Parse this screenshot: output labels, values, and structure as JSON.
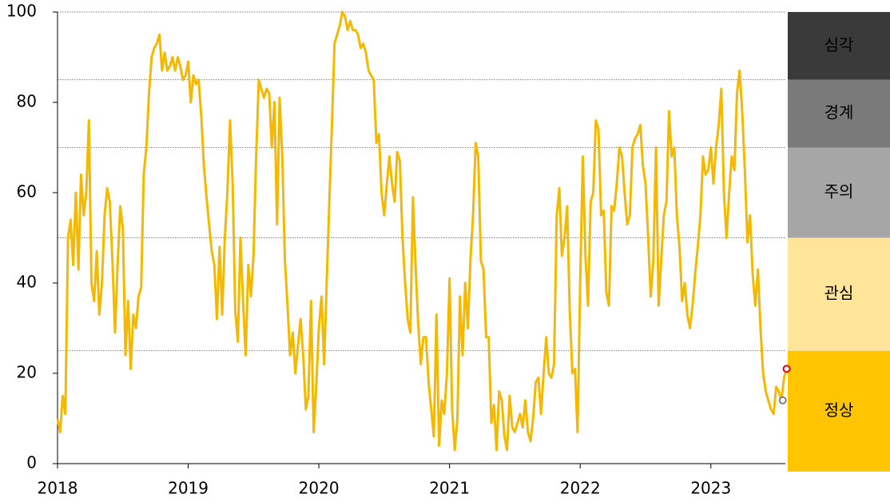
{
  "chart_data": {
    "type": "line",
    "color": "#f5b800",
    "xlim": [
      2018,
      2023.57
    ],
    "xticks": [
      2018,
      2019,
      2020,
      2021,
      2022,
      2023
    ],
    "ylim": [
      0,
      100
    ],
    "yticks": [
      0,
      20,
      40,
      60,
      80,
      100
    ],
    "bands": [
      {
        "label": "정상",
        "from": 0,
        "to": 25,
        "color": "#ffc600"
      },
      {
        "label": "관심",
        "from": 25,
        "to": 50,
        "color": "#ffe599"
      },
      {
        "label": "주의",
        "from": 50,
        "to": 70,
        "color": "#a6a6a6"
      },
      {
        "label": "경계",
        "from": 70,
        "to": 85,
        "color": "#7a7a7a"
      },
      {
        "label": "심각",
        "from": 85,
        "to": 100,
        "color": "#3a3a3a"
      }
    ],
    "markers": [
      {
        "x": 2023.55,
        "y": 14,
        "color": "#7f7f7f"
      },
      {
        "x": 2023.58,
        "y": 21,
        "color": "#e00000"
      }
    ],
    "x": [
      2018,
      2018.02,
      2018.04,
      2018.06,
      2018.08,
      2018.1,
      2018.12,
      2018.14,
      2018.16,
      2018.18,
      2018.2,
      2018.22,
      2018.24,
      2018.26,
      2018.28,
      2018.3,
      2018.32,
      2018.34,
      2018.36,
      2018.38,
      2018.4,
      2018.42,
      2018.44,
      2018.46,
      2018.48,
      2018.5,
      2018.52,
      2018.54,
      2018.56,
      2018.58,
      2018.6,
      2018.62,
      2018.64,
      2018.66,
      2018.68,
      2018.7,
      2018.72,
      2018.74,
      2018.76,
      2018.78,
      2018.8,
      2018.82,
      2018.84,
      2018.86,
      2018.88,
      2018.9,
      2018.92,
      2018.94,
      2018.96,
      2018.98,
      2019,
      2019.02,
      2019.04,
      2019.06,
      2019.08,
      2019.1,
      2019.12,
      2019.14,
      2019.16,
      2019.18,
      2019.2,
      2019.22,
      2019.24,
      2019.26,
      2019.28,
      2019.3,
      2019.32,
      2019.34,
      2019.36,
      2019.38,
      2019.4,
      2019.42,
      2019.44,
      2019.46,
      2019.48,
      2019.5,
      2019.52,
      2019.54,
      2019.56,
      2019.58,
      2019.6,
      2019.62,
      2019.64,
      2019.66,
      2019.68,
      2019.7,
      2019.72,
      2019.74,
      2019.76,
      2019.78,
      2019.8,
      2019.82,
      2019.84,
      2019.86,
      2019.88,
      2019.9,
      2019.92,
      2019.94,
      2019.96,
      2019.98,
      2020,
      2020.02,
      2020.04,
      2020.06,
      2020.08,
      2020.1,
      2020.12,
      2020.14,
      2020.16,
      2020.18,
      2020.2,
      2020.22,
      2020.24,
      2020.26,
      2020.28,
      2020.3,
      2020.32,
      2020.34,
      2020.36,
      2020.38,
      2020.4,
      2020.42,
      2020.44,
      2020.46,
      2020.48,
      2020.5,
      2020.52,
      2020.54,
      2020.56,
      2020.58,
      2020.6,
      2020.62,
      2020.64,
      2020.66,
      2020.68,
      2020.7,
      2020.72,
      2020.74,
      2020.76,
      2020.78,
      2020.8,
      2020.82,
      2020.84,
      2020.86,
      2020.88,
      2020.9,
      2020.92,
      2020.94,
      2020.96,
      2020.98,
      2021,
      2021.02,
      2021.04,
      2021.06,
      2021.08,
      2021.1,
      2021.12,
      2021.14,
      2021.16,
      2021.18,
      2021.2,
      2021.22,
      2021.24,
      2021.26,
      2021.28,
      2021.3,
      2021.32,
      2021.34,
      2021.36,
      2021.38,
      2021.4,
      2021.42,
      2021.44,
      2021.46,
      2021.48,
      2021.5,
      2021.52,
      2021.54,
      2021.56,
      2021.58,
      2021.6,
      2021.62,
      2021.64,
      2021.66,
      2021.68,
      2021.7,
      2021.72,
      2021.74,
      2021.76,
      2021.78,
      2021.8,
      2021.82,
      2021.84,
      2021.86,
      2021.88,
      2021.9,
      2021.92,
      2021.94,
      2021.96,
      2021.98,
      2022,
      2022.02,
      2022.04,
      2022.06,
      2022.08,
      2022.1,
      2022.12,
      2022.14,
      2022.16,
      2022.18,
      2022.2,
      2022.22,
      2022.24,
      2022.26,
      2022.28,
      2022.3,
      2022.32,
      2022.34,
      2022.36,
      2022.38,
      2022.4,
      2022.42,
      2022.44,
      2022.46,
      2022.48,
      2022.5,
      2022.52,
      2022.54,
      2022.56,
      2022.58,
      2022.6,
      2022.62,
      2022.64,
      2022.66,
      2022.68,
      2022.7,
      2022.72,
      2022.74,
      2022.76,
      2022.78,
      2022.8,
      2022.82,
      2022.84,
      2022.86,
      2022.88,
      2022.9,
      2022.92,
      2022.94,
      2022.96,
      2022.98,
      2023,
      2023.02,
      2023.04,
      2023.06,
      2023.08,
      2023.1,
      2023.12,
      2023.14,
      2023.16,
      2023.18,
      2023.2,
      2023.22,
      2023.24,
      2023.26,
      2023.28,
      2023.3,
      2023.32,
      2023.34,
      2023.36,
      2023.38,
      2023.4,
      2023.42,
      2023.44,
      2023.46,
      2023.48,
      2023.5,
      2023.52,
      2023.54,
      2023.56,
      2023.58
    ],
    "values": [
      10,
      7,
      15,
      11,
      50,
      54,
      44,
      60,
      43,
      64,
      55,
      60,
      76,
      40,
      36,
      47,
      33,
      40,
      55,
      61,
      58,
      45,
      29,
      44,
      57,
      52,
      24,
      36,
      21,
      33,
      30,
      37,
      39,
      64,
      70,
      82,
      90,
      92,
      93,
      95,
      87,
      91,
      87,
      88,
      90,
      87,
      90,
      88,
      85,
      86,
      89,
      80,
      86,
      84,
      85,
      77,
      66,
      59,
      53,
      47,
      44,
      32,
      48,
      33,
      50,
      60,
      76,
      62,
      34,
      27,
      50,
      36,
      24,
      44,
      37,
      46,
      68,
      85,
      83,
      81,
      83,
      82,
      70,
      80,
      53,
      81,
      68,
      45,
      35,
      24,
      29,
      20,
      26,
      32,
      24,
      12,
      15,
      36,
      7,
      17,
      30,
      37,
      22,
      40,
      58,
      75,
      93,
      95,
      97,
      100,
      99,
      96,
      98,
      96,
      96,
      95,
      92,
      93,
      91,
      87,
      86,
      85,
      71,
      73,
      60,
      55,
      62,
      68,
      62,
      58,
      69,
      67,
      50,
      40,
      32,
      29,
      59,
      44,
      31,
      22,
      28,
      28,
      18,
      12,
      6,
      33,
      4,
      14,
      11,
      20,
      41,
      12,
      3,
      10,
      37,
      24,
      40,
      30,
      45,
      55,
      71,
      68,
      45,
      43,
      28,
      28,
      9,
      13,
      3,
      16,
      14,
      6,
      3,
      15,
      8,
      7,
      9,
      11,
      8,
      14,
      7,
      5,
      10,
      18,
      19,
      11,
      20,
      28,
      20,
      19,
      22,
      55,
      61,
      46,
      50,
      57,
      34,
      20,
      21,
      7,
      40,
      68,
      46,
      35,
      58,
      60,
      76,
      74,
      55,
      56,
      38,
      35,
      57,
      56,
      62,
      70,
      68,
      60,
      53,
      55,
      70,
      72,
      73,
      75,
      66,
      62,
      50,
      37,
      45,
      70,
      35,
      45,
      55,
      58,
      78,
      68,
      70,
      55,
      48,
      36,
      40,
      33,
      30,
      35,
      42,
      48,
      55,
      68,
      64,
      65,
      70,
      62,
      70,
      75,
      83,
      60,
      50,
      60,
      68,
      65,
      82,
      87,
      78,
      65,
      49,
      55,
      42,
      35,
      43,
      30,
      20,
      16,
      14,
      12,
      11,
      17,
      16,
      14,
      19,
      21
    ]
  }
}
